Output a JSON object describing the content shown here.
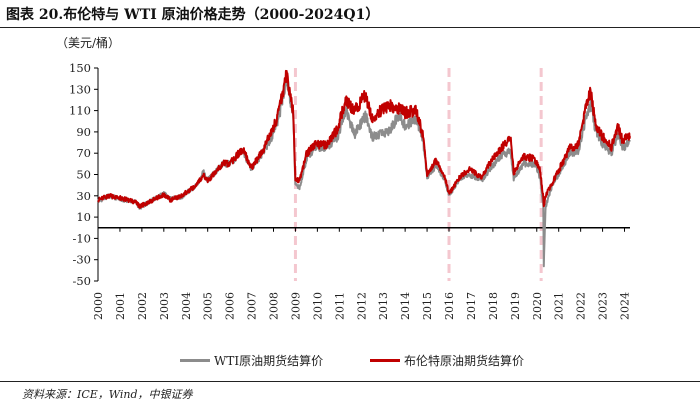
{
  "figure": {
    "title": "图表 20.布伦特与 WTI 原油价格走势（2000-2024Q1）",
    "unit_label": "（美元/桶）",
    "source": "资料来源：ICE，Wind，中银证券"
  },
  "colors": {
    "wti": "#8c8c8c",
    "brent": "#c00000",
    "event_lines": "#f4c7cf",
    "axis": "#000000"
  },
  "chart_data": {
    "type": "line",
    "xlabel": "",
    "ylabel": "（美元/桶）",
    "ylim": [
      -50,
      150
    ],
    "y_ticks": [
      150,
      130,
      110,
      90,
      70,
      50,
      30,
      10,
      -10,
      -30,
      -50
    ],
    "x_ticks": [
      "2000",
      "2001",
      "2002",
      "2003",
      "2004",
      "2005",
      "2006",
      "2007",
      "2008",
      "2009",
      "2010",
      "2011",
      "2012",
      "2013",
      "2014",
      "2015",
      "2016",
      "2017",
      "2018",
      "2019",
      "2020",
      "2021",
      "2022",
      "2023",
      "2024"
    ],
    "xlim": [
      2000.0,
      2024.25
    ],
    "grid": false,
    "legend_position": "bottom",
    "event_lines_x": [
      2009.0,
      2016.0,
      2020.2
    ],
    "series": [
      {
        "name": "WTI原油期货结算价",
        "x": [
          2000.0,
          2000.5,
          2001.0,
          2001.7,
          2001.9,
          2002.5,
          2003.0,
          2003.3,
          2003.8,
          2004.5,
          2004.8,
          2005.0,
          2005.7,
          2006.0,
          2006.6,
          2007.0,
          2007.5,
          2007.9,
          2008.2,
          2008.5,
          2008.6,
          2008.9,
          2009.0,
          2009.2,
          2009.5,
          2009.9,
          2010.4,
          2010.9,
          2011.3,
          2011.7,
          2012.2,
          2012.5,
          2012.9,
          2013.3,
          2013.7,
          2014.0,
          2014.5,
          2014.8,
          2015.0,
          2015.4,
          2015.8,
          2016.0,
          2016.5,
          2016.9,
          2017.5,
          2017.9,
          2018.4,
          2018.8,
          2018.95,
          2019.4,
          2019.9,
          2020.0,
          2020.15,
          2020.3,
          2020.32,
          2020.4,
          2020.7,
          2021.0,
          2021.5,
          2021.9,
          2022.2,
          2022.45,
          2022.7,
          2022.95,
          2023.4,
          2023.7,
          2023.9,
          2024.1,
          2024.25
        ],
        "y": [
          25,
          30,
          27,
          24,
          19,
          26,
          32,
          27,
          29,
          40,
          52,
          45,
          60,
          60,
          72,
          55,
          70,
          85,
          100,
          130,
          140,
          105,
          40,
          38,
          65,
          76,
          75,
          85,
          110,
          88,
          105,
          85,
          88,
          92,
          105,
          95,
          103,
          85,
          48,
          58,
          46,
          30,
          47,
          50,
          45,
          56,
          68,
          72,
          46,
          60,
          60,
          56,
          47,
          20,
          -37,
          19,
          40,
          50,
          70,
          72,
          100,
          117,
          90,
          80,
          70,
          88,
          75,
          78,
          81
        ]
      },
      {
        "name": "布伦特原油期货结算价",
        "x": [
          2000.0,
          2000.5,
          2001.0,
          2001.7,
          2001.9,
          2002.5,
          2003.0,
          2003.3,
          2003.8,
          2004.5,
          2004.8,
          2005.0,
          2005.7,
          2006.0,
          2006.6,
          2007.0,
          2007.5,
          2007.9,
          2008.2,
          2008.5,
          2008.6,
          2008.9,
          2009.0,
          2009.2,
          2009.5,
          2009.9,
          2010.4,
          2010.9,
          2011.3,
          2011.7,
          2012.2,
          2012.5,
          2012.9,
          2013.3,
          2013.7,
          2014.0,
          2014.5,
          2014.8,
          2015.0,
          2015.4,
          2015.8,
          2016.0,
          2016.5,
          2016.9,
          2017.5,
          2017.9,
          2018.4,
          2018.8,
          2018.95,
          2019.4,
          2019.9,
          2020.0,
          2020.15,
          2020.3,
          2020.32,
          2020.4,
          2020.7,
          2021.0,
          2021.5,
          2021.9,
          2022.2,
          2022.45,
          2022.7,
          2022.95,
          2023.4,
          2023.7,
          2023.9,
          2024.1,
          2024.25
        ],
        "y": [
          26,
          30,
          28,
          24,
          20,
          26,
          31,
          26,
          30,
          40,
          50,
          44,
          61,
          60,
          74,
          56,
          72,
          90,
          105,
          135,
          145,
          108,
          44,
          45,
          69,
          78,
          78,
          92,
          120,
          110,
          125,
          102,
          110,
          115,
          112,
          108,
          110,
          88,
          50,
          63,
          48,
          32,
          48,
          55,
          47,
          62,
          75,
          85,
          52,
          67,
          65,
          60,
          54,
          28,
          20,
          30,
          42,
          54,
          75,
          78,
          110,
          128,
          95,
          87,
          76,
          95,
          82,
          85,
          86
        ]
      }
    ]
  }
}
